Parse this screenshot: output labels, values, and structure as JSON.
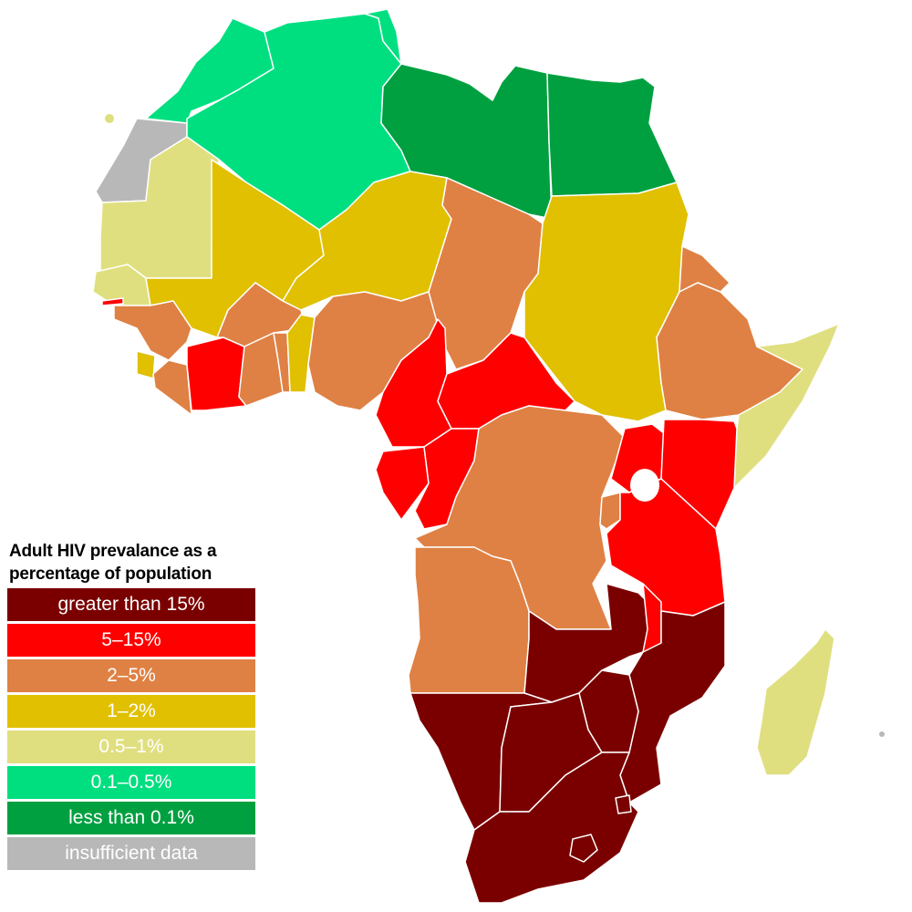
{
  "legend": {
    "title_line1": "Adult HIV prevalance as a",
    "title_line2": "percentage of population",
    "items": [
      {
        "label": "greater than 15%",
        "color": "#7a0000"
      },
      {
        "label": "5–15%",
        "color": "#ff0000"
      },
      {
        "label": "2–5%",
        "color": "#df8144"
      },
      {
        "label": "1–2%",
        "color": "#e0c000"
      },
      {
        "label": "0.5–1%",
        "color": "#e0df80"
      },
      {
        "label": "0.1–0.5%",
        "color": "#00df80"
      },
      {
        "label": "less than 0.1%",
        "color": "#00a040"
      },
      {
        "label": "insufficient data",
        "color": "#b8b8b8"
      }
    ]
  }
}
